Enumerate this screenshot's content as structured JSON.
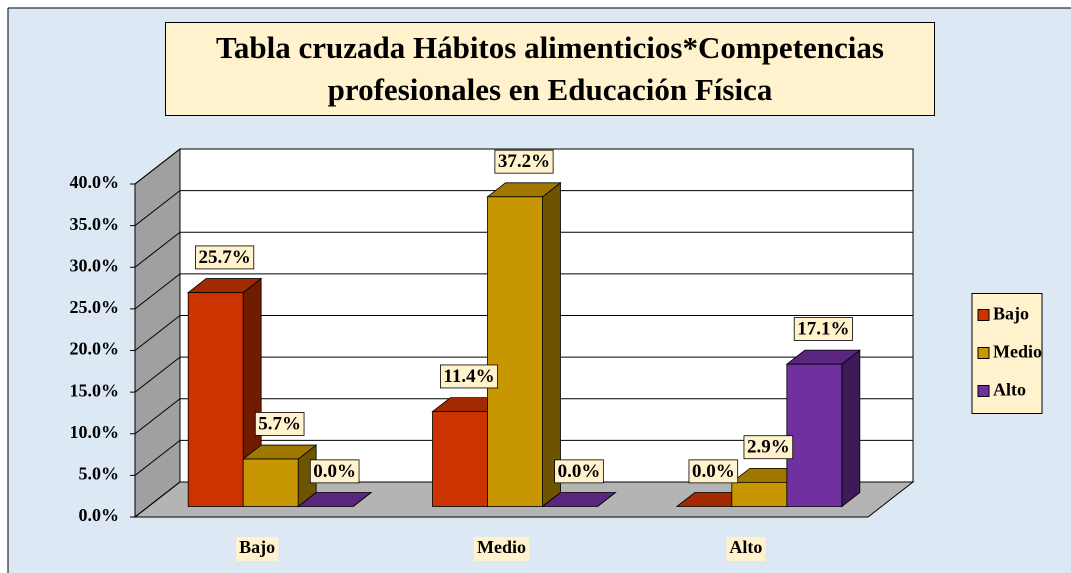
{
  "chart_data": {
    "type": "bar3d",
    "title": "Tabla cruzada Hábitos alimenticios*Competencias profesionales en Educación Física",
    "categories": [
      "Bajo",
      "Medio",
      "Alto"
    ],
    "series": [
      {
        "name": "Bajo",
        "color": "#cc3300",
        "values": [
          25.7,
          11.4,
          0.0
        ],
        "value_labels": [
          "25.7%",
          "11.4%",
          "0.0%"
        ]
      },
      {
        "name": "Medio",
        "color": "#c89600",
        "values": [
          5.7,
          37.2,
          2.9
        ],
        "value_labels": [
          "5.7%",
          "37.2%",
          "2.9%"
        ]
      },
      {
        "name": "Alto",
        "color": "#7030a0",
        "values": [
          0.0,
          0.0,
          17.1
        ],
        "value_labels": [
          "0.0%",
          "0.0%",
          "17.1%"
        ]
      }
    ],
    "ylim": [
      0,
      40
    ],
    "yticks": [
      {
        "value": 0,
        "label": "0.0%"
      },
      {
        "value": 5,
        "label": "5.0%"
      },
      {
        "value": 10,
        "label": "10.0%"
      },
      {
        "value": 15,
        "label": "15.0%"
      },
      {
        "value": 20,
        "label": "20.0%"
      },
      {
        "value": 25,
        "label": "25.0%"
      },
      {
        "value": 30,
        "label": "30.0%"
      },
      {
        "value": 35,
        "label": "35.0%"
      },
      {
        "value": 40,
        "label": "40.0%"
      }
    ],
    "grid": true,
    "legend": "right"
  }
}
